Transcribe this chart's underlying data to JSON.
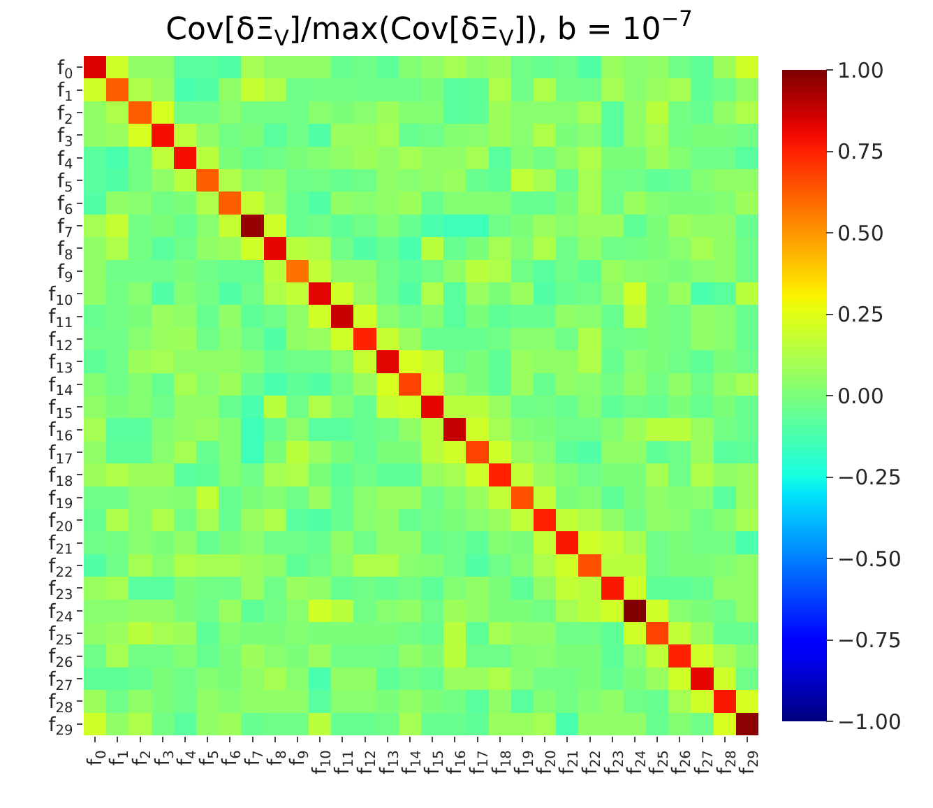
{
  "chart_data": {
    "type": "heatmap",
    "title": "Cov[δΞ$_{V}$]/max(Cov[δΞ$_{V}$]), b = 10$^{−7}$",
    "categories": [
      "f$_{0}$",
      "f$_{1}$",
      "f$_{2}$",
      "f$_{3}$",
      "f$_{4}$",
      "f$_{5}$",
      "f$_{6}$",
      "f$_{7}$",
      "f$_{8}$",
      "f$_{9}$",
      "f$_{10}$",
      "f$_{11}$",
      "f$_{12}$",
      "f$_{13}$",
      "f$_{14}$",
      "f$_{15}$",
      "f$_{16}$",
      "f$_{17}$",
      "f$_{18}$",
      "f$_{19}$",
      "f$_{20}$",
      "f$_{21}$",
      "f$_{22}$",
      "f$_{23}$",
      "f$_{24}$",
      "f$_{25}$",
      "f$_{26}$",
      "f$_{27}$",
      "f$_{28}$",
      "f$_{29}$"
    ],
    "y_categories": [
      "f$_{0}$",
      "f$_{1}$",
      "f$_{2}$",
      "f$_{3}$",
      "f$_{4}$",
      "f$_{5}$",
      "f$_{6}$",
      "f$_{7}$",
      "f$_{8}$",
      "f$_{9}$",
      "f$_{10}$",
      "f$_{11}$",
      "f$_{12}$",
      "f$_{13}$",
      "f$_{14}$",
      "f$_{15}$",
      "f$_{16}$",
      "f$_{17}$",
      "f$_{18}$",
      "f$_{19}$",
      "f$_{20}$",
      "f$_{21}$",
      "f$_{22}$",
      "f$_{23}$",
      "f$_{24}$",
      "f$_{25}$",
      "f$_{26}$",
      "f$_{27}$",
      "f$_{28}$",
      "f$_{29}$"
    ],
    "cells": [
      [
        0.84,
        0.2,
        0.05,
        0.05,
        -0.08,
        -0.08,
        -0.1,
        0.1,
        0.05,
        0.05,
        0.05,
        -0.05,
        -0.03,
        -0.07,
        0.02,
        0.05,
        0.1,
        0.05,
        0.08,
        -0.03,
        -0.05,
        -0.03,
        -0.1,
        0.07,
        0.03,
        0.05,
        -0.03,
        -0.07,
        0.08,
        0.2
      ],
      [
        0.2,
        0.62,
        0.12,
        0.07,
        -0.12,
        -0.1,
        0.05,
        0.18,
        0.12,
        -0.03,
        -0.02,
        -0.02,
        -0.03,
        -0.03,
        -0.03,
        0.0,
        -0.08,
        -0.07,
        0.12,
        -0.03,
        0.12,
        -0.02,
        -0.03,
        0.1,
        0.03,
        0.07,
        0.1,
        -0.07,
        -0.03,
        0.05
      ],
      [
        0.05,
        0.12,
        0.62,
        0.22,
        -0.02,
        -0.02,
        0.03,
        -0.02,
        -0.02,
        -0.03,
        0.03,
        0.0,
        0.03,
        0.08,
        0.02,
        0.02,
        -0.08,
        -0.07,
        0.08,
        0.03,
        0.03,
        0.03,
        0.1,
        -0.08,
        0.05,
        0.15,
        -0.02,
        -0.05,
        0.05,
        0.12
      ],
      [
        0.05,
        0.07,
        0.22,
        0.79,
        0.16,
        0.05,
        -0.02,
        0.0,
        -0.08,
        -0.03,
        -0.1,
        0.07,
        0.07,
        0.1,
        -0.05,
        -0.03,
        0.02,
        0.03,
        0.08,
        0.03,
        0.12,
        0.0,
        0.03,
        -0.08,
        0.05,
        0.1,
        -0.02,
        0.0,
        0.0,
        -0.02
      ],
      [
        -0.08,
        -0.12,
        -0.02,
        0.16,
        0.79,
        0.15,
        0.0,
        -0.05,
        -0.03,
        0.0,
        0.02,
        0.05,
        0.08,
        0.05,
        0.1,
        0.05,
        0.05,
        0.1,
        -0.08,
        0.02,
        -0.02,
        0.05,
        0.12,
        0.0,
        0.0,
        0.08,
        0.02,
        -0.03,
        -0.03,
        -0.08
      ],
      [
        -0.08,
        -0.1,
        -0.02,
        0.05,
        0.15,
        0.62,
        0.12,
        0.03,
        0.05,
        -0.03,
        -0.02,
        -0.05,
        -0.03,
        0.05,
        0.03,
        0.05,
        0.07,
        -0.05,
        -0.07,
        0.17,
        0.1,
        -0.05,
        0.1,
        -0.02,
        -0.03,
        -0.07,
        -0.05,
        0.02,
        0.05,
        0.05
      ],
      [
        -0.1,
        0.05,
        0.03,
        -0.02,
        0.0,
        0.12,
        0.62,
        0.18,
        0.07,
        -0.05,
        -0.1,
        0.05,
        0.03,
        0.05,
        0.08,
        -0.05,
        0.02,
        0.02,
        0.02,
        -0.05,
        -0.05,
        0.0,
        0.1,
        -0.03,
        0.07,
        0.02,
        0.0,
        0.0,
        0.02,
        0.08
      ],
      [
        0.1,
        0.18,
        -0.02,
        0.0,
        -0.05,
        0.03,
        0.18,
        0.96,
        0.2,
        -0.05,
        -0.03,
        -0.07,
        -0.03,
        0.02,
        -0.05,
        -0.12,
        -0.15,
        -0.15,
        -0.03,
        0.0,
        0.07,
        0.03,
        0.07,
        0.07,
        -0.07,
        0.0,
        0.08,
        0.05,
        0.05,
        -0.05
      ],
      [
        0.05,
        0.12,
        -0.02,
        -0.08,
        -0.03,
        0.05,
        0.07,
        0.2,
        0.82,
        0.15,
        0.12,
        -0.03,
        -0.1,
        -0.05,
        -0.12,
        0.15,
        -0.05,
        0.0,
        0.1,
        0.02,
        0.12,
        -0.03,
        0.05,
        -0.03,
        -0.02,
        0.0,
        0.03,
        0.1,
        0.05,
        -0.03
      ],
      [
        0.05,
        -0.03,
        -0.03,
        -0.03,
        0.0,
        -0.03,
        -0.05,
        -0.05,
        0.15,
        0.58,
        0.17,
        0.05,
        0.05,
        -0.03,
        -0.07,
        -0.03,
        0.05,
        0.15,
        0.12,
        -0.03,
        -0.08,
        -0.03,
        -0.07,
        0.07,
        0.03,
        0.02,
        0.0,
        0.03,
        0.05,
        -0.03
      ],
      [
        0.05,
        -0.02,
        0.03,
        -0.1,
        0.02,
        -0.02,
        -0.1,
        -0.03,
        0.12,
        0.17,
        0.83,
        0.2,
        0.07,
        -0.03,
        -0.1,
        0.12,
        -0.08,
        0.07,
        0.0,
        0.07,
        -0.1,
        -0.05,
        -0.03,
        0.05,
        0.2,
        0.0,
        0.07,
        -0.12,
        -0.08,
        0.15
      ],
      [
        -0.05,
        -0.02,
        0.0,
        0.07,
        0.05,
        -0.05,
        0.05,
        -0.07,
        -0.03,
        0.05,
        0.2,
        0.87,
        0.2,
        0.03,
        -0.02,
        0.02,
        -0.08,
        0.0,
        -0.07,
        -0.05,
        -0.05,
        0.05,
        0.03,
        -0.05,
        0.15,
        0.0,
        -0.02,
        0.05,
        0.03,
        -0.05
      ],
      [
        -0.03,
        -0.03,
        0.03,
        0.07,
        0.08,
        -0.03,
        0.03,
        -0.03,
        -0.1,
        0.05,
        0.07,
        0.2,
        0.75,
        0.18,
        0.07,
        -0.05,
        -0.05,
        -0.05,
        -0.03,
        0.03,
        0.03,
        -0.03,
        0.12,
        -0.03,
        -0.02,
        0.0,
        -0.02,
        0.05,
        0.03,
        -0.05
      ],
      [
        -0.07,
        -0.03,
        0.08,
        0.1,
        0.05,
        0.05,
        0.05,
        0.02,
        -0.05,
        -0.03,
        -0.03,
        0.03,
        0.18,
        0.83,
        0.22,
        0.18,
        -0.03,
        0.0,
        -0.07,
        0.07,
        0.05,
        0.05,
        0.12,
        -0.05,
        0.03,
        0.0,
        -0.03,
        -0.07,
        0.0,
        -0.03
      ],
      [
        0.02,
        -0.03,
        0.02,
        -0.05,
        0.1,
        0.03,
        0.08,
        -0.05,
        -0.12,
        -0.07,
        -0.1,
        -0.02,
        0.07,
        0.22,
        0.68,
        0.2,
        0.05,
        0.0,
        -0.07,
        0.07,
        -0.05,
        0.05,
        0.03,
        -0.02,
        0.05,
        -0.02,
        0.05,
        -0.03,
        0.05,
        0.1
      ],
      [
        0.05,
        0.0,
        0.02,
        -0.03,
        0.05,
        0.05,
        -0.05,
        -0.12,
        0.15,
        -0.03,
        0.12,
        0.02,
        -0.05,
        0.18,
        0.2,
        0.82,
        0.15,
        0.15,
        0.07,
        -0.03,
        -0.02,
        -0.05,
        0.02,
        -0.07,
        -0.03,
        -0.05,
        0.0,
        -0.05,
        0.0,
        -0.05
      ],
      [
        0.1,
        -0.08,
        -0.08,
        0.02,
        0.05,
        0.07,
        0.02,
        -0.15,
        -0.05,
        0.05,
        -0.08,
        -0.08,
        -0.05,
        -0.03,
        0.05,
        0.15,
        0.88,
        0.2,
        0.1,
        0.02,
        0.0,
        -0.03,
        -0.03,
        0.02,
        0.08,
        0.15,
        0.15,
        0.07,
        -0.02,
        -0.05
      ],
      [
        0.05,
        -0.07,
        -0.07,
        0.03,
        0.1,
        -0.05,
        0.02,
        -0.15,
        0.0,
        0.15,
        0.07,
        0.0,
        -0.05,
        0.0,
        0.0,
        0.15,
        0.2,
        0.68,
        0.2,
        0.07,
        0.03,
        -0.07,
        -0.1,
        0.05,
        0.05,
        -0.07,
        -0.03,
        0.07,
        -0.08,
        -0.07
      ],
      [
        0.08,
        0.12,
        0.08,
        0.08,
        -0.08,
        -0.07,
        0.02,
        -0.03,
        0.1,
        0.12,
        0.0,
        -0.07,
        -0.03,
        -0.07,
        -0.07,
        0.07,
        0.1,
        0.2,
        0.75,
        0.17,
        0.07,
        0.02,
        -0.03,
        0.0,
        0.0,
        0.1,
        -0.03,
        0.12,
        0.05,
        0.07
      ],
      [
        -0.03,
        -0.03,
        0.03,
        0.03,
        0.02,
        0.17,
        -0.05,
        0.0,
        0.02,
        -0.03,
        0.07,
        -0.05,
        0.03,
        0.07,
        0.07,
        -0.03,
        0.02,
        0.07,
        0.17,
        0.65,
        0.17,
        0.0,
        0.02,
        -0.07,
        0.0,
        0.05,
        0.02,
        0.03,
        -0.08,
        0.07
      ],
      [
        -0.05,
        0.12,
        0.03,
        0.12,
        -0.02,
        0.1,
        -0.05,
        0.07,
        0.12,
        -0.08,
        -0.1,
        -0.05,
        0.03,
        0.05,
        -0.05,
        -0.02,
        0.0,
        0.03,
        0.07,
        0.17,
        0.75,
        0.17,
        0.12,
        0.05,
        -0.02,
        0.05,
        0.03,
        -0.02,
        0.02,
        0.1
      ],
      [
        -0.03,
        -0.02,
        0.03,
        0.0,
        0.05,
        -0.05,
        0.0,
        0.03,
        -0.03,
        -0.03,
        -0.05,
        0.05,
        -0.03,
        0.05,
        0.05,
        -0.05,
        -0.03,
        -0.07,
        0.02,
        0.0,
        0.17,
        0.77,
        0.2,
        0.17,
        0.1,
        -0.03,
        0.0,
        -0.02,
        -0.02,
        -0.12
      ],
      [
        -0.1,
        -0.03,
        0.1,
        0.03,
        0.12,
        0.1,
        0.1,
        0.07,
        0.05,
        -0.07,
        -0.03,
        0.03,
        0.12,
        0.12,
        0.03,
        0.02,
        -0.03,
        -0.1,
        -0.03,
        0.02,
        0.12,
        0.2,
        0.65,
        0.15,
        0.15,
        -0.03,
        0.0,
        0.0,
        0.02,
        0.05
      ],
      [
        0.07,
        0.1,
        -0.08,
        -0.08,
        0.0,
        -0.02,
        -0.03,
        0.07,
        -0.03,
        0.07,
        0.05,
        -0.05,
        -0.03,
        -0.05,
        -0.02,
        -0.07,
        0.02,
        0.05,
        0.0,
        -0.07,
        0.05,
        0.17,
        0.15,
        0.77,
        0.2,
        -0.07,
        -0.07,
        -0.05,
        0.05,
        0.05
      ],
      [
        0.03,
        0.03,
        0.05,
        0.05,
        0.0,
        -0.03,
        0.07,
        -0.07,
        -0.02,
        0.03,
        0.2,
        0.15,
        -0.02,
        0.03,
        0.05,
        -0.03,
        0.08,
        0.05,
        0.0,
        0.0,
        -0.02,
        0.1,
        0.15,
        0.2,
        1.0,
        0.2,
        0.03,
        0.0,
        -0.03,
        0.05
      ],
      [
        0.05,
        0.07,
        0.15,
        0.1,
        0.08,
        -0.07,
        0.02,
        0.0,
        0.0,
        0.02,
        0.0,
        0.0,
        0.0,
        0.0,
        -0.02,
        -0.05,
        0.15,
        -0.07,
        0.1,
        0.05,
        0.05,
        -0.03,
        -0.03,
        -0.07,
        0.2,
        0.68,
        0.17,
        0.07,
        -0.05,
        -0.05
      ],
      [
        -0.03,
        0.1,
        -0.02,
        -0.02,
        0.02,
        -0.05,
        0.0,
        0.08,
        0.03,
        0.0,
        0.07,
        -0.02,
        -0.02,
        -0.03,
        0.05,
        0.0,
        0.15,
        -0.03,
        -0.03,
        0.02,
        0.03,
        0.0,
        0.0,
        -0.07,
        0.03,
        0.17,
        0.75,
        0.2,
        0.1,
        0.02
      ],
      [
        -0.07,
        -0.07,
        -0.05,
        0.0,
        -0.03,
        0.02,
        0.0,
        0.05,
        0.1,
        0.03,
        -0.12,
        0.05,
        0.05,
        -0.07,
        -0.03,
        -0.05,
        0.07,
        0.07,
        0.12,
        0.03,
        -0.02,
        -0.02,
        0.0,
        -0.05,
        0.0,
        0.07,
        0.2,
        0.82,
        0.2,
        -0.03
      ],
      [
        0.08,
        -0.03,
        0.05,
        0.0,
        -0.03,
        0.05,
        0.02,
        0.05,
        0.05,
        0.05,
        -0.08,
        0.03,
        0.03,
        0.0,
        0.05,
        0.0,
        -0.02,
        -0.08,
        0.05,
        -0.08,
        0.02,
        -0.02,
        0.02,
        0.05,
        -0.03,
        -0.05,
        0.1,
        0.2,
        0.77,
        0.22
      ],
      [
        0.2,
        0.05,
        0.12,
        -0.02,
        -0.08,
        0.05,
        0.08,
        -0.05,
        -0.03,
        -0.03,
        0.15,
        -0.05,
        -0.05,
        -0.03,
        0.1,
        -0.05,
        -0.05,
        -0.07,
        0.07,
        0.07,
        0.1,
        -0.12,
        0.05,
        0.05,
        0.05,
        -0.05,
        0.02,
        -0.03,
        0.22,
        0.98
      ]
    ],
    "clim": [
      -1,
      1
    ],
    "cticks": [
      {
        "value": -1,
        "label": "−1.00"
      },
      {
        "value": -0.75,
        "label": "−0.75"
      },
      {
        "value": -0.5,
        "label": "−0.50"
      },
      {
        "value": -0.25,
        "label": "−0.25"
      },
      {
        "value": 0,
        "label": "0.00"
      },
      {
        "value": 0.25,
        "label": "0.25"
      },
      {
        "value": 0.5,
        "label": "0.50"
      },
      {
        "value": 0.75,
        "label": "0.75"
      },
      {
        "value": 1,
        "label": "1.00"
      }
    ]
  }
}
